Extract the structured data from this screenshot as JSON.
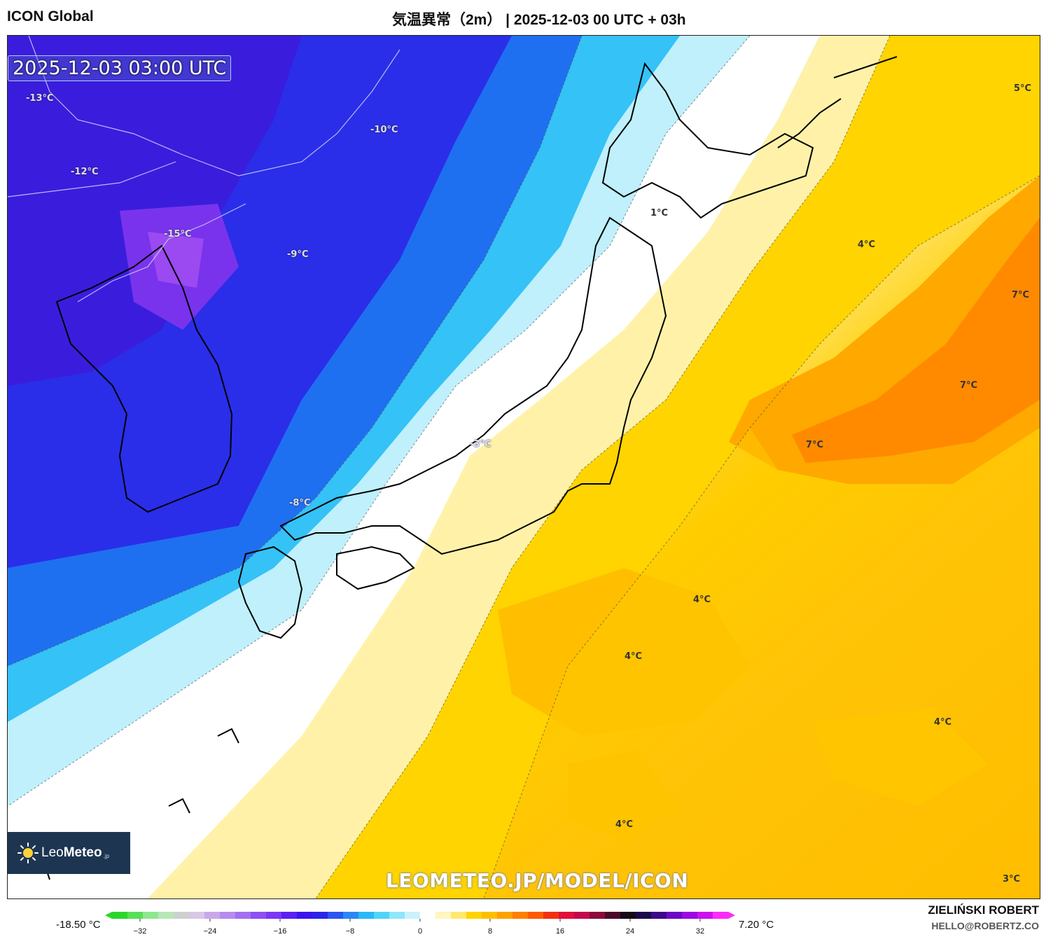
{
  "header": {
    "model": "ICON Global",
    "title": "気温異常（2m） | 2025-12-03 00 UTC + 03h"
  },
  "map": {
    "timestamp": "2025-12-03 03:00 UTC",
    "labels": [
      {
        "text": "-13°C",
        "kind": "cold"
      },
      {
        "text": "-10°C",
        "kind": "cold"
      },
      {
        "text": "-12°C",
        "kind": "cold"
      },
      {
        "text": "-15°C",
        "kind": "cold"
      },
      {
        "text": "-9°C",
        "kind": "cold"
      },
      {
        "text": "-3°C",
        "kind": "cold"
      },
      {
        "text": "-8°C",
        "kind": "cold"
      },
      {
        "text": "1°C",
        "kind": "warm"
      },
      {
        "text": "5°C",
        "kind": "warm"
      },
      {
        "text": "4°C",
        "kind": "warm"
      },
      {
        "text": "7°C",
        "kind": "warm"
      },
      {
        "text": "7°C",
        "kind": "warm"
      },
      {
        "text": "7°C",
        "kind": "warm"
      },
      {
        "text": "4°C",
        "kind": "warm"
      },
      {
        "text": "4°C",
        "kind": "warm"
      },
      {
        "text": "4°C",
        "kind": "warm"
      },
      {
        "text": "4°C",
        "kind": "warm"
      },
      {
        "text": "3°C",
        "kind": "warm"
      }
    ],
    "watermark": "LEOMETEO.JP/MODEL/ICON",
    "logo": {
      "part1": "Leo",
      "part2": "Meteo",
      "suffix": ".jp"
    }
  },
  "colorbar": {
    "min_label": "-18.50 °C",
    "max_label": "7.20 °C",
    "ticks": [
      "−32",
      "−24",
      "−16",
      "−8",
      "0",
      "8",
      "16",
      "24",
      "32"
    ],
    "colors": [
      "#2bd62b",
      "#57df57",
      "#8ee88e",
      "#b7e7b7",
      "#cfcfcf",
      "#d8c7e6",
      "#c7a9ea",
      "#b58cec",
      "#a36ff0",
      "#8e50f2",
      "#7a37f4",
      "#5a21f2",
      "#3a14ee",
      "#2a24ea",
      "#2a55f0",
      "#2a88f4",
      "#2ab8f6",
      "#4fd4f8",
      "#90e6fa",
      "#c8f2fc",
      "#ffffff",
      "#fff6c0",
      "#ffe870",
      "#ffd400",
      "#ffbf00",
      "#ffa200",
      "#ff7f00",
      "#ff5a00",
      "#f43010",
      "#e2103a",
      "#c40a4e",
      "#8a0a3a",
      "#4a0a2a",
      "#160a16",
      "#1a0a4a",
      "#3a0a8a",
      "#6a0ac4",
      "#9a0ae2",
      "#cc10f0",
      "#ff2af8"
    ]
  },
  "credits": {
    "name": "ZIELIŃSKI ROBERT",
    "email": "HELLO@ROBERTZ.CO"
  }
}
